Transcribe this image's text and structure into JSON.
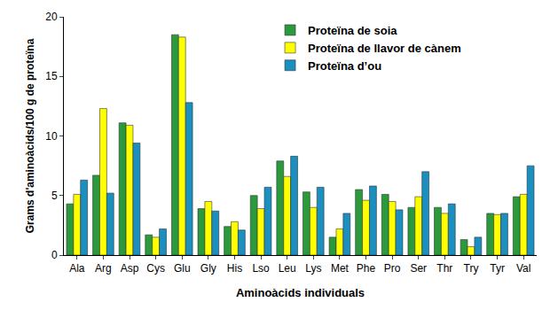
{
  "chart_data": {
    "type": "bar",
    "x_label": "Aminoàcids individuals",
    "y_label": "Grams d'aminoàcids/100 g de proteïna",
    "categories": [
      "Ala",
      "Arg",
      "Asp",
      "Cys",
      "Glu",
      "Gly",
      "His",
      "Lso",
      "Leu",
      "Lys",
      "Met",
      "Phe",
      "Pro",
      "Ser",
      "Thr",
      "Try",
      "Tyr",
      "Val"
    ],
    "series": [
      {
        "name": "Proteïna de soia",
        "color": "#2a9a3c",
        "values": [
          4.3,
          6.7,
          11.1,
          1.7,
          18.5,
          3.9,
          2.4,
          5.0,
          7.9,
          5.3,
          1.5,
          5.5,
          5.1,
          4.0,
          4.0,
          1.3,
          3.5,
          4.9
        ]
      },
      {
        "name": "Proteïna de llavor de cànem",
        "color": "#ffff00",
        "values": [
          5.1,
          12.3,
          10.9,
          1.5,
          18.3,
          4.5,
          2.8,
          3.9,
          6.6,
          4.0,
          2.2,
          4.6,
          4.5,
          4.9,
          3.5,
          0.7,
          3.4,
          5.1
        ]
      },
      {
        "name": "Proteïna d’ou",
        "color": "#1a8fc0",
        "values": [
          6.3,
          5.2,
          9.4,
          2.2,
          12.8,
          3.7,
          2.1,
          5.7,
          8.3,
          5.7,
          3.5,
          5.8,
          3.8,
          7.0,
          4.3,
          1.5,
          3.5,
          7.5
        ]
      }
    ],
    "ylim": [
      0,
      20
    ],
    "yticks": [
      0,
      5,
      10,
      15,
      20
    ],
    "grid": false,
    "legend": "top right"
  }
}
